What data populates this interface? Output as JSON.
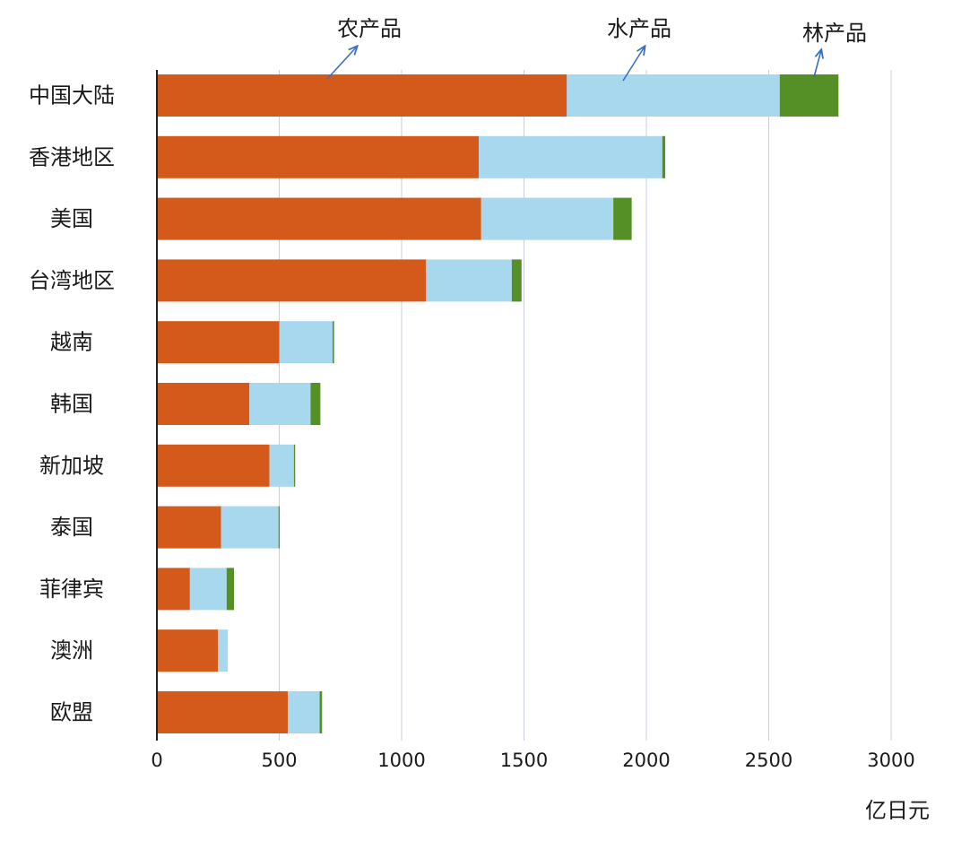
{
  "chart_data": {
    "type": "bar",
    "orientation": "horizontal",
    "stacked": true,
    "categories": [
      "中国大陆",
      "香港地区",
      "美国",
      "台湾地区",
      "越南",
      "韩国",
      "新加坡",
      "泰国",
      "菲律宾",
      "澳洲",
      "欧盟"
    ],
    "series": [
      {
        "name": "农产品",
        "color": "#d35a1a",
        "values": [
          1675,
          1315,
          1325,
          1100,
          500,
          378,
          460,
          262,
          135,
          250,
          535
        ]
      },
      {
        "name": "水产品",
        "color": "#a8d8ee",
        "values": [
          870,
          750,
          540,
          350,
          218,
          250,
          100,
          235,
          150,
          40,
          130
        ]
      },
      {
        "name": "林产品",
        "color": "#559026",
        "values": [
          240,
          12,
          75,
          40,
          6,
          40,
          5,
          5,
          30,
          0,
          10
        ]
      }
    ],
    "xlim": [
      0,
      3000
    ],
    "xticks": [
      0,
      500,
      1000,
      1500,
      2000,
      2500,
      3000
    ],
    "xtick_labels": [
      "0",
      "500",
      "1000",
      "1500",
      "2000",
      "2500",
      "3000"
    ],
    "xlabel": "亿日元",
    "ylabel": "",
    "title": "",
    "grid": true,
    "legend_style": "callout-arrows"
  }
}
